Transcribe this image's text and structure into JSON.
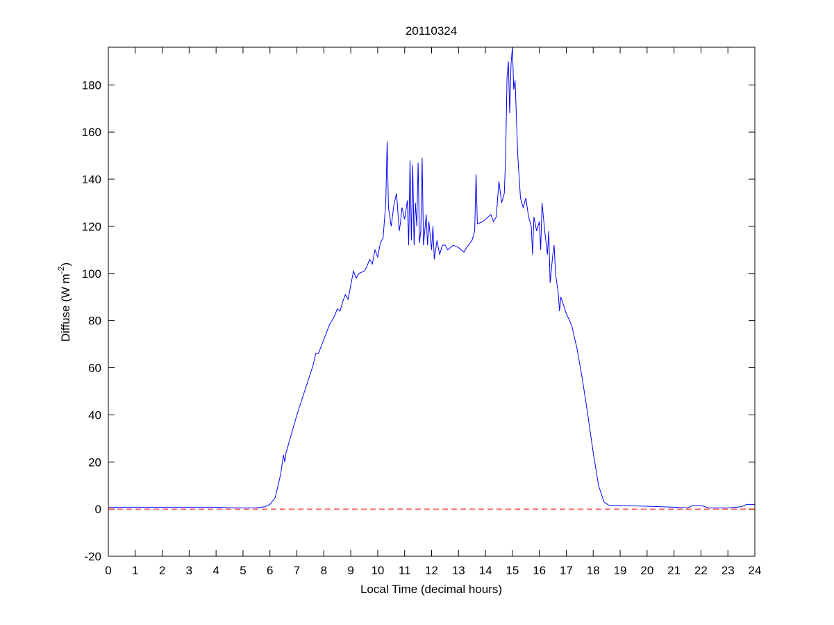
{
  "chart_data": {
    "type": "line",
    "title": "20110324",
    "xlabel": "Local Time (decimal hours)",
    "ylabel_parts": [
      "Diffuse (W m",
      "-2",
      ")"
    ],
    "x": [
      0,
      1,
      2,
      3,
      4,
      4.5,
      5,
      5.5,
      5.8,
      6.0,
      6.2,
      6.4,
      6.5,
      6.55,
      6.6,
      6.8,
      7,
      7.2,
      7.4,
      7.6,
      7.7,
      7.8,
      8,
      8.2,
      8.4,
      8.5,
      8.6,
      8.7,
      8.8,
      8.9,
      9,
      9.1,
      9.2,
      9.3,
      9.5,
      9.6,
      9.7,
      9.8,
      9.9,
      10,
      10.1,
      10.2,
      10.3,
      10.35,
      10.4,
      10.5,
      10.6,
      10.7,
      10.8,
      10.85,
      10.9,
      11.0,
      11.1,
      11.15,
      11.2,
      11.25,
      11.3,
      11.35,
      11.4,
      11.45,
      11.5,
      11.55,
      11.6,
      11.65,
      11.7,
      11.8,
      11.85,
      11.9,
      12.0,
      12.05,
      12.1,
      12.2,
      12.3,
      12.4,
      12.5,
      12.6,
      12.8,
      13,
      13.1,
      13.2,
      13.3,
      13.5,
      13.6,
      13.65,
      13.7,
      13.9,
      14.1,
      14.2,
      14.3,
      14.4,
      14.5,
      14.6,
      14.7,
      14.75,
      14.8,
      14.85,
      14.9,
      14.95,
      15.0,
      15.05,
      15.1,
      15.2,
      15.3,
      15.4,
      15.5,
      15.6,
      15.7,
      15.75,
      15.8,
      15.9,
      16,
      16.05,
      16.1,
      16.2,
      16.3,
      16.35,
      16.4,
      16.5,
      16.55,
      16.6,
      16.7,
      16.75,
      16.8,
      17,
      17.2,
      17.4,
      17.6,
      17.8,
      18,
      18.2,
      18.4,
      18.6,
      19,
      20,
      21,
      21.5,
      21.7,
      22,
      22.3,
      23,
      23.5,
      23.7,
      24
    ],
    "series": [
      {
        "name": "Diffuse",
        "color": "#0000ff",
        "values": [
          0.8,
          0.8,
          0.8,
          0.8,
          0.8,
          0.6,
          0.5,
          0.6,
          1,
          2,
          5,
          15,
          23,
          20,
          24,
          32,
          40,
          47,
          54,
          61,
          66,
          66,
          72,
          78,
          82,
          85,
          84,
          88,
          91,
          89,
          95,
          101,
          98,
          100,
          101,
          103,
          106,
          104,
          110,
          107,
          113,
          115,
          130,
          156,
          128,
          120,
          129,
          134,
          118,
          122,
          128,
          123,
          131,
          112,
          148,
          114,
          146,
          112,
          130,
          120,
          147,
          113,
          118,
          149,
          112,
          125,
          112,
          122,
          110,
          120,
          106,
          114,
          108,
          112,
          112,
          110,
          112,
          111,
          110,
          109,
          111,
          114,
          118,
          142,
          121,
          122,
          124,
          125,
          122,
          124,
          139,
          130,
          134,
          150,
          183,
          190,
          168,
          189,
          196,
          178,
          182,
          150,
          132,
          128,
          132,
          124,
          120,
          108,
          124,
          118,
          122,
          110,
          130,
          118,
          108,
          118,
          96,
          108,
          112,
          100,
          92,
          84,
          90,
          83,
          78,
          68,
          55,
          40,
          24,
          10,
          3,
          1.5,
          1.5,
          1.2,
          0.8,
          0.5,
          1.5,
          1.5,
          0.5,
          0.5,
          1,
          2,
          2
        ]
      }
    ],
    "hline": {
      "value": 0,
      "color": "#ff0000"
    },
    "xlim": [
      0,
      24
    ],
    "xticks": [
      0,
      1,
      2,
      3,
      4,
      5,
      6,
      7,
      8,
      9,
      10,
      11,
      12,
      13,
      14,
      15,
      16,
      17,
      18,
      19,
      20,
      21,
      22,
      23,
      24
    ],
    "ylim": [
      -20,
      196
    ],
    "yticks": [
      -20,
      0,
      20,
      40,
      60,
      80,
      100,
      120,
      140,
      160,
      180
    ]
  }
}
